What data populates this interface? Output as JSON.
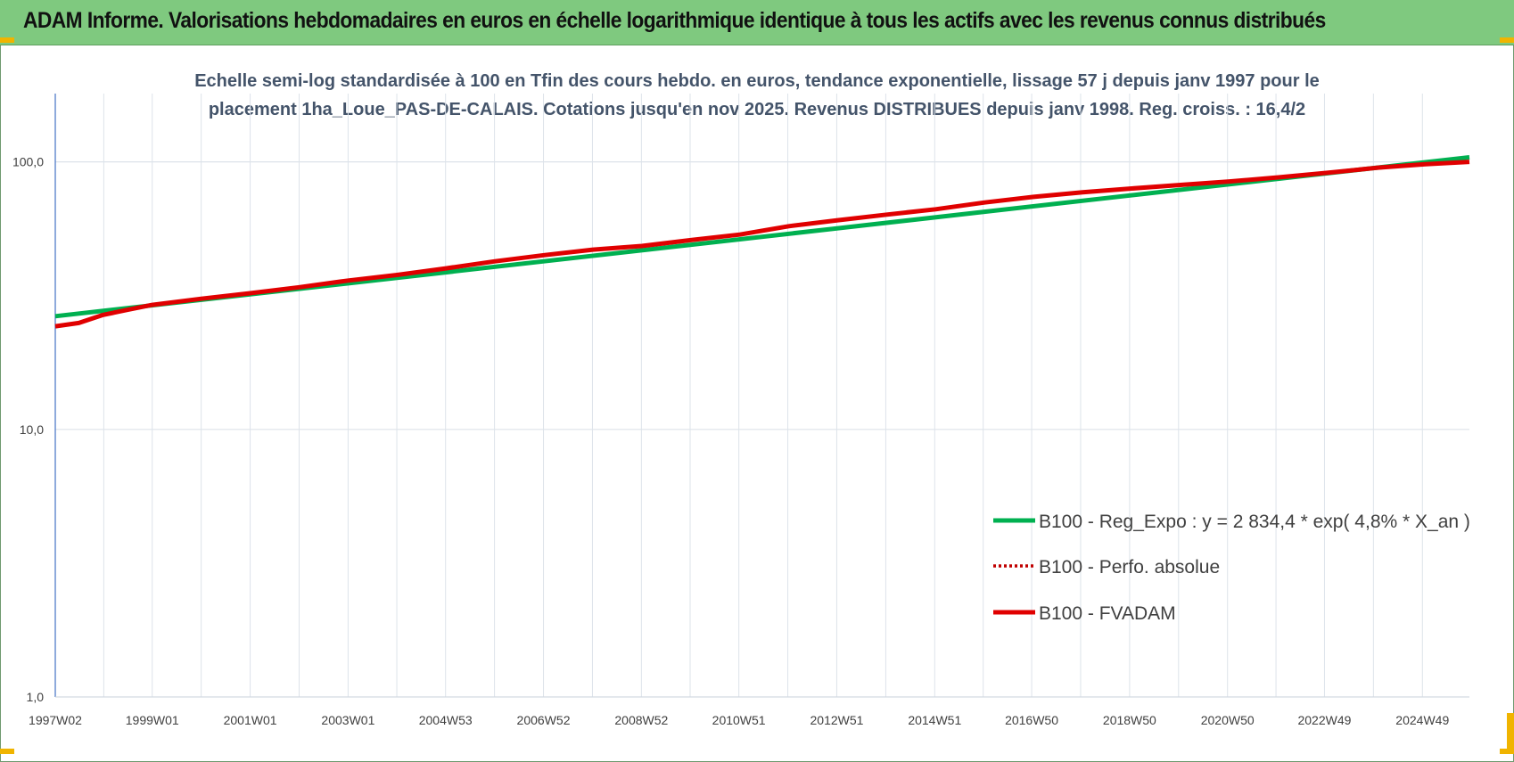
{
  "banner": {
    "title": "ADAM Informe. Valorisations hebdomadaires en euros en échelle logarithmique identique à tous les actifs avec les revenus connus distribués",
    "color": "#7fc97f"
  },
  "chart_data": {
    "type": "line",
    "title_line1": "Echelle semi-log standardisée à 100 en Tfin des cours hebdo. en euros, tendance exponentielle, lissage 57 j depuis janv 1997 pour le",
    "title_line2": "placement 1ha_Loue_PAS-DE-CALAIS. Cotations jusqu'en nov 2025. Revenus DISTRIBUES depuis janv 1998. Reg. croiss. : 16,4/2",
    "y_scale": "log",
    "ylim": [
      1,
      180
    ],
    "y_ticks": [
      {
        "value": 1,
        "label": "1,0"
      },
      {
        "value": 10,
        "label": "10,0"
      },
      {
        "value": 100,
        "label": "100,0"
      }
    ],
    "x_range": [
      1997.02,
      2025.9
    ],
    "x_ticks": [
      {
        "x": 1997.02,
        "label": "1997W02"
      },
      {
        "x": 1999.0,
        "label": "1999W01"
      },
      {
        "x": 2001.0,
        "label": "2001W01"
      },
      {
        "x": 2003.0,
        "label": "2003W01"
      },
      {
        "x": 2004.99,
        "label": "2004W53"
      },
      {
        "x": 2006.99,
        "label": "2006W52"
      },
      {
        "x": 2008.99,
        "label": "2008W52"
      },
      {
        "x": 2010.98,
        "label": "2010W51"
      },
      {
        "x": 2012.98,
        "label": "2012W51"
      },
      {
        "x": 2014.98,
        "label": "2014W51"
      },
      {
        "x": 2016.96,
        "label": "2016W50"
      },
      {
        "x": 2018.96,
        "label": "2018W50"
      },
      {
        "x": 2020.96,
        "label": "2020W50"
      },
      {
        "x": 2022.94,
        "label": "2022W49"
      },
      {
        "x": 2024.94,
        "label": "2024W49"
      }
    ],
    "grid": true,
    "legend_position": "right-center",
    "series": [
      {
        "name": "B100 - Reg_Expo : y = 2 834,4 * exp( 4,8% *  X_an )",
        "color": "#00b050",
        "style": "solid",
        "x": [
          1997.02,
          2025.9
        ],
        "y": [
          26.5,
          104
        ]
      },
      {
        "name": "B100 - Perfo. absolue",
        "color": "#c00000",
        "style": "dotted",
        "x": [],
        "y": []
      },
      {
        "name": "B100 - FVADAM",
        "color": "#e00000",
        "style": "solid",
        "x": [
          1997.02,
          1997.5,
          1998.0,
          1998.5,
          1999.0,
          2000.0,
          2001.0,
          2002.0,
          2003.0,
          2004.0,
          2005.0,
          2006.0,
          2007.0,
          2008.0,
          2009.0,
          2010.0,
          2011.0,
          2012.0,
          2013.0,
          2014.0,
          2015.0,
          2016.0,
          2017.0,
          2018.0,
          2019.0,
          2020.0,
          2021.0,
          2022.0,
          2023.0,
          2024.0,
          2025.0,
          2025.9
        ],
        "y": [
          24.3,
          25.0,
          26.8,
          28.0,
          29.2,
          30.8,
          32.3,
          34.0,
          36.0,
          37.8,
          40.0,
          42.5,
          44.8,
          47.0,
          48.5,
          51.0,
          53.5,
          57.5,
          60.5,
          63.5,
          66.5,
          70.5,
          74.0,
          77.0,
          79.5,
          82.0,
          84.5,
          87.5,
          91.0,
          95.0,
          98.0,
          100
        ]
      }
    ]
  }
}
